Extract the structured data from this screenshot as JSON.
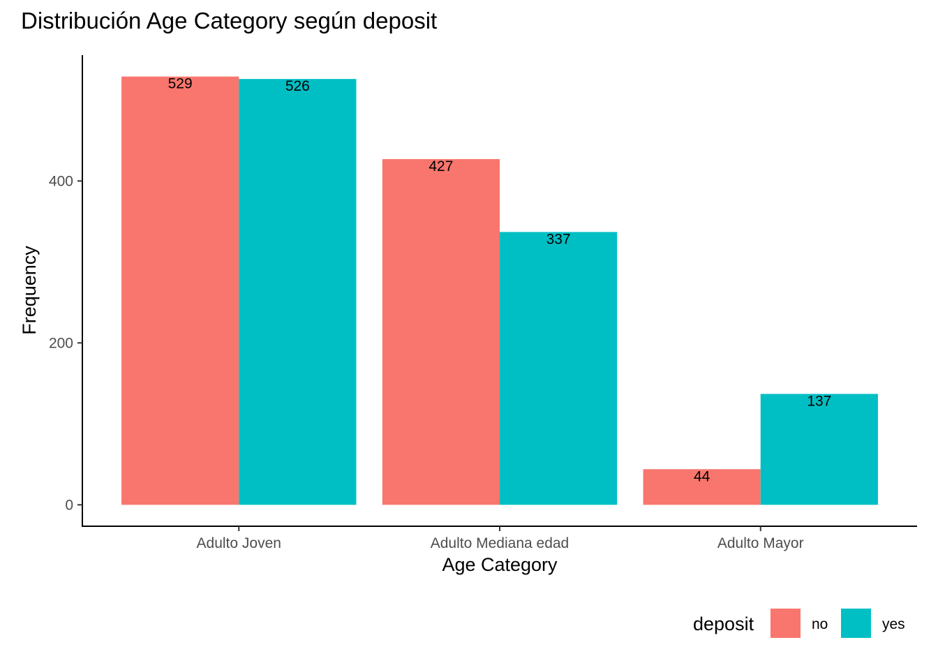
{
  "chart_data": {
    "type": "bar",
    "title": "Distribución Age Category según deposit",
    "xlabel": "Age Category",
    "ylabel": "Frequency",
    "categories": [
      "Adulto Joven",
      "Adulto Mediana edad",
      "Adulto Mayor"
    ],
    "series": [
      {
        "name": "no",
        "color": "#f8766d",
        "values": [
          529,
          427,
          44
        ]
      },
      {
        "name": "yes",
        "color": "#00bfc4",
        "values": [
          526,
          337,
          137
        ]
      }
    ],
    "yticks": [
      0,
      200,
      400
    ],
    "ylim": [
      -26.45,
      555.45
    ],
    "grid": false,
    "legend": {
      "title": "deposit",
      "position": "bottom-right"
    }
  }
}
